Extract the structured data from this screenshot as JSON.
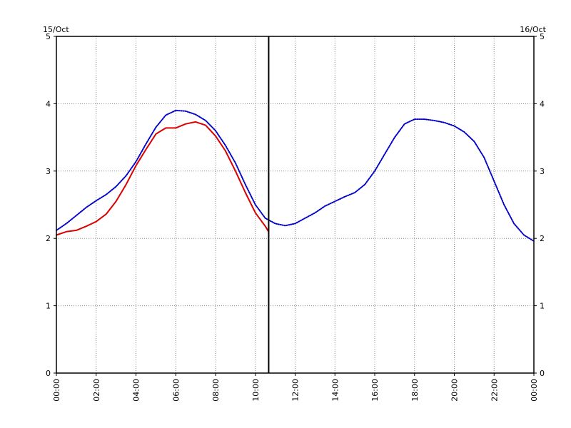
{
  "chart_data": {
    "type": "line",
    "title": "",
    "xlabel": "",
    "ylabel": "",
    "left_date_label": "15/Oct",
    "right_date_label": "16/Oct",
    "xlim_hours": [
      0,
      24
    ],
    "ylim": [
      0,
      5
    ],
    "grid": true,
    "grid_style": "dotted",
    "x_ticks": [
      "00:00",
      "02:00",
      "04:00",
      "06:00",
      "08:00",
      "10:00",
      "12:00",
      "14:00",
      "16:00",
      "18:00",
      "20:00",
      "22:00",
      "00:00"
    ],
    "y_ticks": [
      "0",
      "1",
      "2",
      "3",
      "4",
      "5"
    ],
    "now_marker_hour": 10.67,
    "series": [
      {
        "style": "dotted",
        "color": "#0000cc",
        "x": [
          0,
          0.5,
          1,
          1.5,
          2,
          2.5,
          3,
          3.5,
          4,
          4.5,
          5,
          5.5,
          6,
          6.5,
          7,
          7.5,
          8,
          8.5,
          9,
          9.5,
          10,
          10.5,
          11,
          11.5,
          12,
          12.5,
          13,
          13.5,
          14,
          14.5,
          15,
          15.5,
          16,
          16.5,
          17,
          17.5,
          18,
          18.5,
          19,
          19.5,
          20,
          20.5,
          21,
          21.5,
          22,
          22.5,
          23,
          23.5,
          24
        ],
        "y": [
          2.12,
          2.22,
          2.34,
          2.46,
          2.56,
          2.65,
          2.77,
          2.93,
          3.14,
          3.4,
          3.65,
          3.83,
          3.9,
          3.89,
          3.84,
          3.75,
          3.6,
          3.38,
          3.12,
          2.8,
          2.5,
          2.3,
          2.22,
          2.19,
          2.22,
          2.3,
          2.38,
          2.48,
          2.55,
          2.62,
          2.68,
          2.8,
          3.0,
          3.25,
          3.5,
          3.7,
          3.77,
          3.77,
          3.75,
          3.72,
          3.67,
          3.58,
          3.44,
          3.2,
          2.85,
          2.5,
          2.22,
          2.05,
          1.96
        ]
      },
      {
        "style": "solid",
        "color": "#dd0000",
        "x": [
          0,
          0.5,
          1,
          1.5,
          2,
          2.5,
          3,
          3.5,
          4,
          4.5,
          5,
          5.5,
          6,
          6.5,
          7,
          7.5,
          8,
          8.5,
          9,
          9.5,
          10,
          10.5,
          10.67
        ],
        "y": [
          2.05,
          2.1,
          2.12,
          2.18,
          2.25,
          2.36,
          2.55,
          2.8,
          3.08,
          3.32,
          3.55,
          3.64,
          3.64,
          3.7,
          3.73,
          3.68,
          3.52,
          3.3,
          3.0,
          2.68,
          2.38,
          2.18,
          2.1
        ]
      }
    ]
  }
}
